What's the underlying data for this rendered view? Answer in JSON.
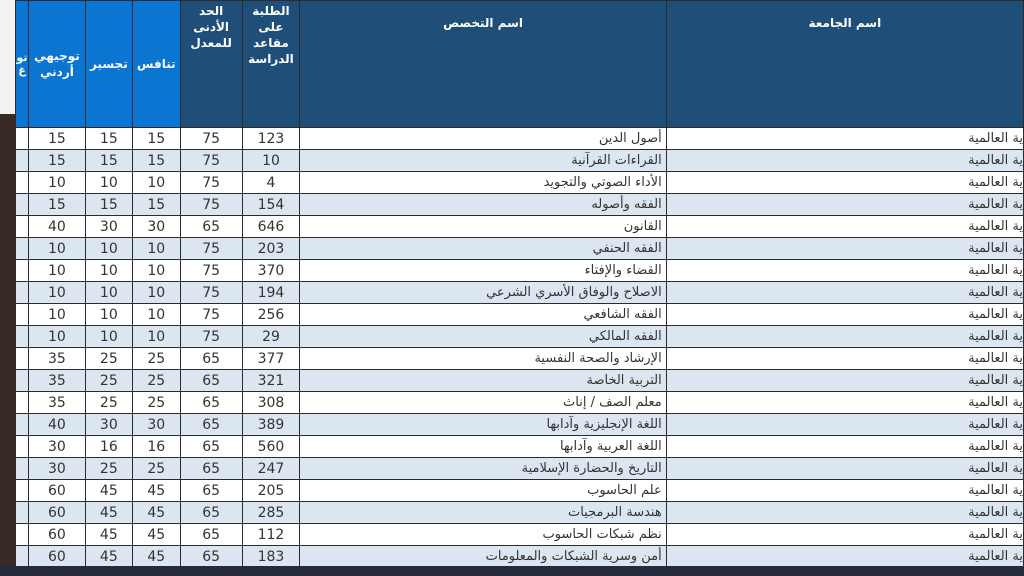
{
  "headers": {
    "partial": "تو غ",
    "tawjihi": "توجيهي أردني",
    "tajseer": "تجسير",
    "tanafus": "تنافس",
    "min_avg": "الحد الأدنى للمعدل",
    "students": "الطلبة على مقاعد الدراسة",
    "major": "اسم التخصص",
    "university": "اسم الجامعة"
  },
  "colors": {
    "header_dark": "#1f4e79",
    "header_bright": "#0b76d1",
    "row_alt": "#dce6f1"
  },
  "rows": [
    {
      "tawjihi": "15",
      "tajseer": "15",
      "tanafus": "15",
      "min_avg": "75",
      "students": "123",
      "major": "أصول الدين",
      "university": "ية العالمية"
    },
    {
      "tawjihi": "15",
      "tajseer": "15",
      "tanafus": "15",
      "min_avg": "75",
      "students": "10",
      "major": "القراءات القرآنية",
      "university": "ية العالمية"
    },
    {
      "tawjihi": "10",
      "tajseer": "10",
      "tanafus": "10",
      "min_avg": "75",
      "students": "4",
      "major": "الأداء الصوتي والتجويد",
      "university": "ية العالمية"
    },
    {
      "tawjihi": "15",
      "tajseer": "15",
      "tanafus": "15",
      "min_avg": "75",
      "students": "154",
      "major": "الفقه وأصوله",
      "university": "ية العالمية"
    },
    {
      "tawjihi": "40",
      "tajseer": "30",
      "tanafus": "30",
      "min_avg": "65",
      "students": "646",
      "major": "القانون",
      "university": "ية العالمية"
    },
    {
      "tawjihi": "10",
      "tajseer": "10",
      "tanafus": "10",
      "min_avg": "75",
      "students": "203",
      "major": "الفقه الحنفي",
      "university": "ية العالمية"
    },
    {
      "tawjihi": "10",
      "tajseer": "10",
      "tanafus": "10",
      "min_avg": "75",
      "students": "370",
      "major": "القضاء والإفتاء",
      "university": "ية العالمية"
    },
    {
      "tawjihi": "10",
      "tajseer": "10",
      "tanafus": "10",
      "min_avg": "75",
      "students": "194",
      "major": "الاصلاح والوفاق الأسري الشرعي",
      "university": "ية العالمية"
    },
    {
      "tawjihi": "10",
      "tajseer": "10",
      "tanafus": "10",
      "min_avg": "75",
      "students": "256",
      "major": "الفقه الشافعي",
      "university": "ية العالمية"
    },
    {
      "tawjihi": "10",
      "tajseer": "10",
      "tanafus": "10",
      "min_avg": "75",
      "students": "29",
      "major": "الفقه المالكي",
      "university": "ية العالمية"
    },
    {
      "tawjihi": "35",
      "tajseer": "25",
      "tanafus": "25",
      "min_avg": "65",
      "students": "377",
      "major": "الإرشاد والصحة النفسية",
      "university": "ية العالمية"
    },
    {
      "tawjihi": "35",
      "tajseer": "25",
      "tanafus": "25",
      "min_avg": "65",
      "students": "321",
      "major": "التربية الخاصة",
      "university": "ية العالمية"
    },
    {
      "tawjihi": "35",
      "tajseer": "25",
      "tanafus": "25",
      "min_avg": "65",
      "students": "308",
      "major": "معلم الصف / إناث",
      "university": "ية العالمية"
    },
    {
      "tawjihi": "40",
      "tajseer": "30",
      "tanafus": "30",
      "min_avg": "65",
      "students": "389",
      "major": "اللغة الإنجليزية وآدابها",
      "university": "ية العالمية"
    },
    {
      "tawjihi": "30",
      "tajseer": "16",
      "tanafus": "16",
      "min_avg": "65",
      "students": "560",
      "major": "اللغة العربية وآدابها",
      "university": "ية العالمية"
    },
    {
      "tawjihi": "30",
      "tajseer": "25",
      "tanafus": "25",
      "min_avg": "65",
      "students": "247",
      "major": "التاريخ والحضارة الإسلامية",
      "university": "ية العالمية"
    },
    {
      "tawjihi": "60",
      "tajseer": "45",
      "tanafus": "45",
      "min_avg": "65",
      "students": "205",
      "major": "علم الحاسوب",
      "university": "ية العالمية"
    },
    {
      "tawjihi": "60",
      "tajseer": "45",
      "tanafus": "45",
      "min_avg": "65",
      "students": "285",
      "major": "هندسة البرمجيات",
      "university": "ية العالمية"
    },
    {
      "tawjihi": "60",
      "tajseer": "45",
      "tanafus": "45",
      "min_avg": "65",
      "students": "112",
      "major": "نظم شبكات الحاسوب",
      "university": "ية العالمية"
    },
    {
      "tawjihi": "60",
      "tajseer": "45",
      "tanafus": "45",
      "min_avg": "65",
      "students": "183",
      "major": "أمن وسرية الشبكات والمعلومات",
      "university": "ية العالمية"
    }
  ]
}
